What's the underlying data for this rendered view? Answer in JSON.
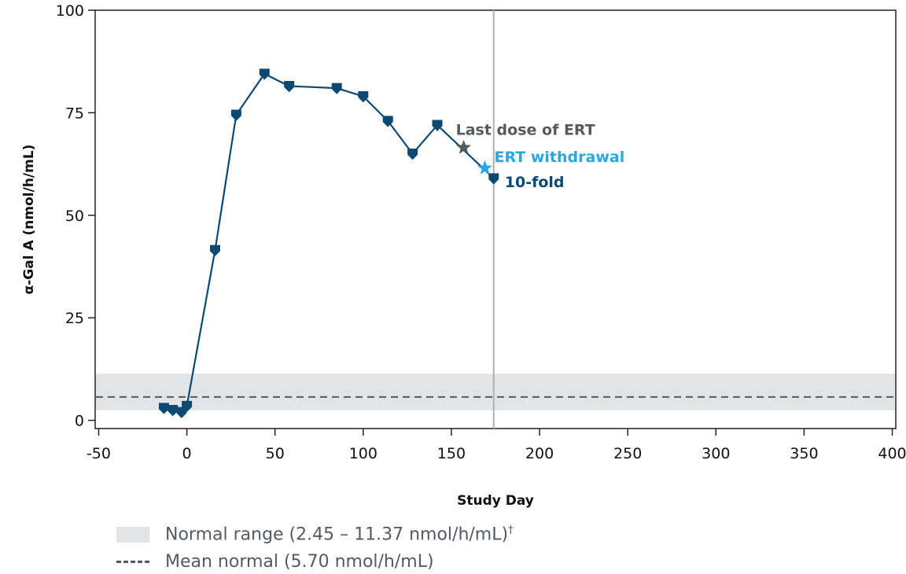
{
  "chart_data": {
    "type": "line",
    "title": "",
    "xlabel": "Study Day",
    "ylabel": "α-Gal A (nmol/h/mL)",
    "xlim": [
      -52,
      402
    ],
    "ylim": [
      -2,
      100
    ],
    "xticks": [
      -50,
      0,
      50,
      100,
      150,
      200,
      250,
      300,
      350,
      400
    ],
    "yticks": [
      0,
      25,
      50,
      75,
      100
    ],
    "grid": false,
    "series": [
      {
        "color": "#0d4a73",
        "x": [
          -13,
          -8,
          -3,
          0,
          16,
          28,
          44,
          58,
          85,
          100,
          114,
          128,
          142,
          174
        ],
        "y": [
          3.0,
          2.5,
          2.0,
          3.5,
          41.5,
          74.5,
          84.5,
          81.5,
          81.0,
          79.0,
          73.0,
          65.0,
          72.0,
          59.0
        ]
      }
    ],
    "normal_range": [
      2.45,
      11.37
    ],
    "mean_normal": 5.7,
    "vertical_line_x": 174,
    "annotations": [
      {
        "text": "Last dose of ERT",
        "x": 157,
        "y": 66.5,
        "color": "#555a60",
        "marker": "star"
      },
      {
        "text": "ERT withdrawal",
        "x": 169,
        "y": 61.5,
        "color": "#29a8e0",
        "marker": "star"
      },
      {
        "text": "10-fold",
        "x": 174,
        "y": 59.0,
        "color": "#0d4a73",
        "marker": "none"
      }
    ],
    "legend": [
      {
        "label": "Normal range (2.45 – 11.37 nmol/h/mL)",
        "footnote": "†",
        "swatch": "band"
      },
      {
        "label": "Mean normal (5.70 nmol/h/mL)",
        "footnote": "",
        "swatch": "dashed-line"
      }
    ],
    "legend_position": "bottom-left"
  }
}
